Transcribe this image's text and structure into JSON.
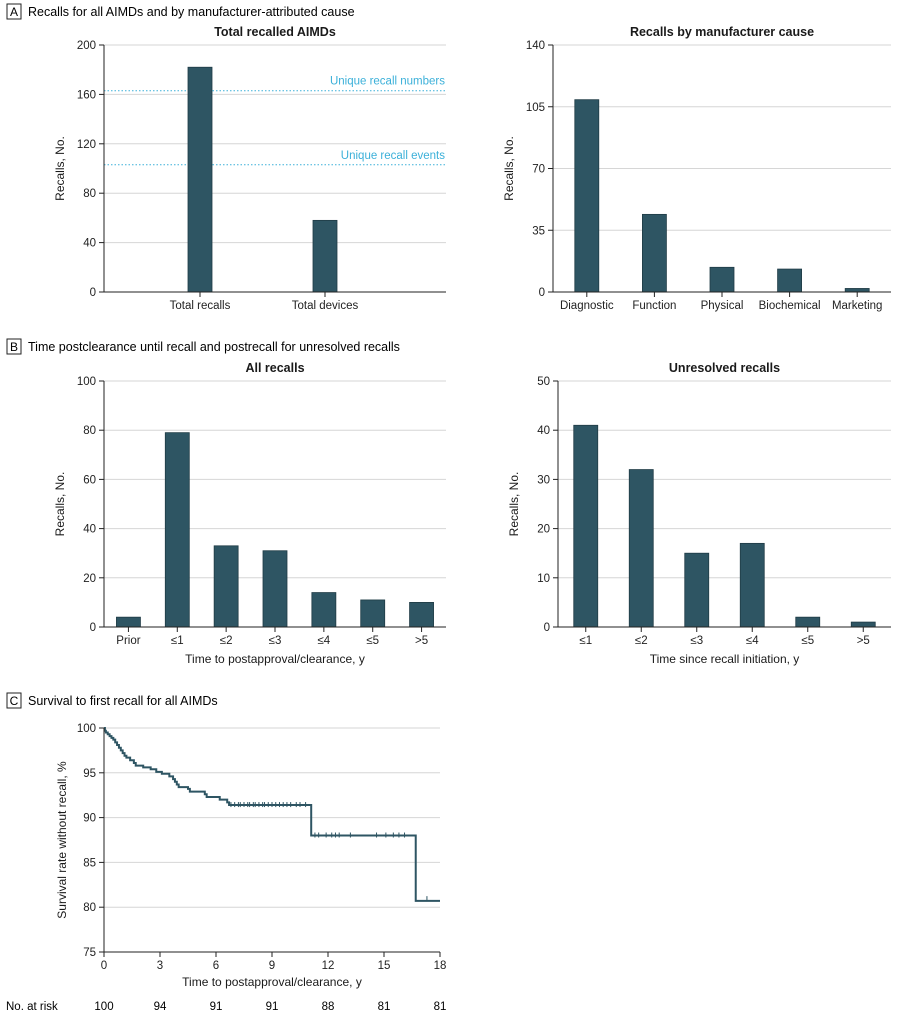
{
  "colors": {
    "bar": "#2e5563",
    "bar_stroke": "#1f3b45",
    "grid": "#d6d6d6",
    "axis": "#222222",
    "reference": "#3bb0d9",
    "km_line": "#2e5563",
    "panel_box": "#222222"
  },
  "sections": [
    {
      "letter": "A",
      "title": "Recalls for all AIMDs and by manufacturer-attributed cause"
    },
    {
      "letter": "B",
      "title": "Time postclearance until recall and postrecall for unresolved recalls"
    },
    {
      "letter": "C",
      "title": "Survival to first recall for all AIMDs"
    }
  ],
  "risk_table": {
    "label": "No. at risk",
    "values": [
      "100",
      "94",
      "91",
      "91",
      "88",
      "81",
      "81"
    ]
  },
  "chart_data": [
    {
      "id": "total",
      "type": "bar",
      "title": "Total recalled AIMDs",
      "xlabel": "",
      "ylabel": "Recalls, No.",
      "categories": [
        "Total recalls",
        "Total devices"
      ],
      "values": [
        182,
        58
      ],
      "ylim": [
        0,
        200
      ],
      "yticks": [
        "0",
        "40",
        "80",
        "120",
        "160",
        "200"
      ],
      "grid": true,
      "reference_lines": [
        {
          "value": 163,
          "label": "Unique recall numbers"
        },
        {
          "value": 103,
          "label": "Unique recall events"
        }
      ]
    },
    {
      "id": "cause",
      "type": "bar",
      "title": "Recalls by manufacturer cause",
      "xlabel": "",
      "ylabel": "Recalls, No.",
      "categories": [
        "Diagnostic",
        "Function",
        "Physical",
        "Biochemical",
        "Marketing"
      ],
      "values": [
        109,
        44,
        14,
        13,
        2
      ],
      "ylim": [
        0,
        140
      ],
      "yticks": [
        "0",
        "35",
        "70",
        "105",
        "140"
      ],
      "grid": true
    },
    {
      "id": "all",
      "type": "bar",
      "title": "All recalls",
      "xlabel": "Time to postapproval/clearance, y",
      "ylabel": "Recalls, No.",
      "categories": [
        "Prior",
        "≤1",
        "≤2",
        "≤3",
        "≤4",
        "≤5",
        ">5"
      ],
      "values": [
        4,
        79,
        33,
        31,
        14,
        11,
        10
      ],
      "ylim": [
        0,
        100
      ],
      "yticks": [
        "0",
        "20",
        "40",
        "60",
        "80",
        "100"
      ],
      "grid": true
    },
    {
      "id": "unresolved",
      "type": "bar",
      "title": "Unresolved recalls",
      "xlabel": "Time since recall initiation, y",
      "ylabel": "Recalls, No.",
      "categories": [
        "≤1",
        "≤2",
        "≤3",
        "≤4",
        "≤5",
        ">5"
      ],
      "values": [
        41,
        32,
        15,
        17,
        2,
        1
      ],
      "ylim": [
        0,
        50
      ],
      "yticks": [
        "0",
        "10",
        "20",
        "30",
        "40",
        "50"
      ],
      "grid": true
    },
    {
      "id": "survival",
      "type": "line",
      "title": "",
      "xlabel": "Time to postapproval/clearance, y",
      "ylabel": "Survival rate without recall, %",
      "xlim": [
        0,
        18
      ],
      "ylim": [
        75,
        100
      ],
      "xticks": [
        "0",
        "3",
        "6",
        "9",
        "12",
        "15",
        "18"
      ],
      "yticks": [
        "75",
        "80",
        "85",
        "90",
        "95",
        "100"
      ],
      "grid": true,
      "step_points": [
        [
          0,
          100
        ],
        [
          0.05,
          99.7
        ],
        [
          0.1,
          99.5
        ],
        [
          0.2,
          99.3
        ],
        [
          0.3,
          99.1
        ],
        [
          0.4,
          98.9
        ],
        [
          0.5,
          98.7
        ],
        [
          0.6,
          98.4
        ],
        [
          0.7,
          98.1
        ],
        [
          0.8,
          97.8
        ],
        [
          0.9,
          97.5
        ],
        [
          1.0,
          97.2
        ],
        [
          1.1,
          96.9
        ],
        [
          1.2,
          96.7
        ],
        [
          1.4,
          96.4
        ],
        [
          1.6,
          96.1
        ],
        [
          1.7,
          95.8
        ],
        [
          2.1,
          95.6
        ],
        [
          2.5,
          95.4
        ],
        [
          2.8,
          95.1
        ],
        [
          3.1,
          94.9
        ],
        [
          3.5,
          94.6
        ],
        [
          3.7,
          94.3
        ],
        [
          3.8,
          94.0
        ],
        [
          3.9,
          93.7
        ],
        [
          4.0,
          93.4
        ],
        [
          4.5,
          93.2
        ],
        [
          4.6,
          92.9
        ],
        [
          5.4,
          92.6
        ],
        [
          5.5,
          92.3
        ],
        [
          6.2,
          92.0
        ],
        [
          6.6,
          91.7
        ],
        [
          6.7,
          91.4
        ],
        [
          11.0,
          91.4
        ],
        [
          11.1,
          88.0
        ],
        [
          16.6,
          88.0
        ],
        [
          16.7,
          80.7
        ],
        [
          18.0,
          80.7
        ]
      ],
      "censor_marks": [
        [
          6.8,
          91.4
        ],
        [
          7.0,
          91.4
        ],
        [
          7.2,
          91.4
        ],
        [
          7.3,
          91.4
        ],
        [
          7.5,
          91.4
        ],
        [
          7.7,
          91.4
        ],
        [
          7.8,
          91.4
        ],
        [
          8.0,
          91.4
        ],
        [
          8.1,
          91.4
        ],
        [
          8.3,
          91.4
        ],
        [
          8.5,
          91.4
        ],
        [
          8.6,
          91.4
        ],
        [
          8.8,
          91.4
        ],
        [
          9.0,
          91.4
        ],
        [
          9.2,
          91.4
        ],
        [
          9.4,
          91.4
        ],
        [
          9.6,
          91.4
        ],
        [
          9.8,
          91.4
        ],
        [
          10.0,
          91.4
        ],
        [
          10.3,
          91.4
        ],
        [
          10.5,
          91.4
        ],
        [
          10.8,
          91.4
        ],
        [
          11.3,
          88.0
        ],
        [
          11.5,
          88.0
        ],
        [
          11.9,
          88.0
        ],
        [
          12.2,
          88.0
        ],
        [
          12.4,
          88.0
        ],
        [
          12.6,
          88.0
        ],
        [
          13.2,
          88.0
        ],
        [
          14.6,
          88.0
        ],
        [
          15.1,
          88.0
        ],
        [
          15.5,
          88.0
        ],
        [
          15.8,
          88.0
        ],
        [
          16.1,
          88.0
        ],
        [
          17.3,
          80.9
        ]
      ]
    }
  ]
}
